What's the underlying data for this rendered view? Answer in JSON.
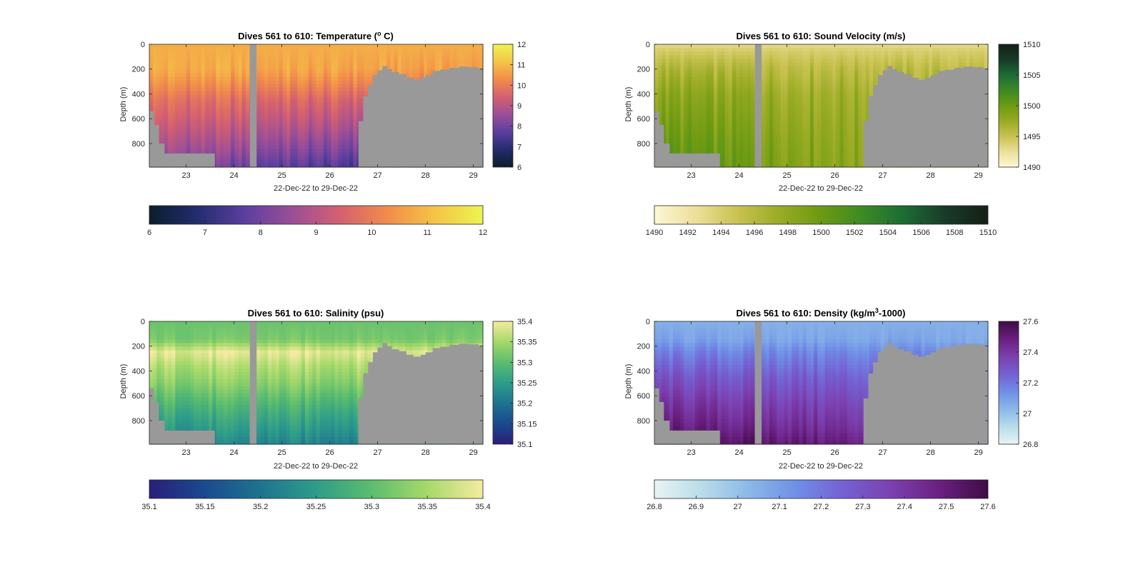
{
  "figure": {
    "background": "#ffffff",
    "nodata_color": "#999999"
  },
  "chart_data": [
    {
      "type": "heatmap",
      "title": "Dives 561 to 610: Temperature (",
      "title_sup": "o",
      "title_after": " C)",
      "xlabel": "22-Dec-22 to 29-Dec-22",
      "ylabel": "Depth (m)",
      "x_ticks": [
        "23",
        "24",
        "25",
        "26",
        "27",
        "28",
        "29"
      ],
      "x_tick_values": [
        23,
        24,
        25,
        26,
        27,
        28,
        29
      ],
      "xlim": [
        22.23,
        29.2
      ],
      "y_ticks": [
        "0",
        "200",
        "400",
        "600",
        "800"
      ],
      "y_tick_values": [
        0,
        200,
        400,
        600,
        800
      ],
      "ylim": [
        0,
        990
      ],
      "gap_day": [
        24.33,
        24.47
      ],
      "colormap": [
        "#0a1e2c",
        "#232c6e",
        "#5a3fa0",
        "#9c4e97",
        "#d46070",
        "#f28c4a",
        "#f5c447",
        "#ecf550"
      ],
      "clim": [
        6,
        12
      ],
      "colorbar_ticks": [
        "6",
        "7",
        "8",
        "9",
        "10",
        "11",
        "12"
      ],
      "colorbar_tick_values": [
        6,
        7,
        8,
        9,
        10,
        11,
        12
      ],
      "profile": {
        "depths": [
          0,
          200,
          300,
          450,
          650,
          850,
          990
        ],
        "values": [
          10.8,
          10.7,
          10.3,
          9.6,
          9.0,
          8.3,
          7.7
        ]
      },
      "trend": "linear"
    },
    {
      "type": "heatmap",
      "title": "Dives 561 to 610: Sound Velocity (m/s)",
      "xlabel": "22-Dec-22 to 29-Dec-22",
      "ylabel": "Depth (m)",
      "x_ticks": [
        "23",
        "24",
        "25",
        "26",
        "27",
        "28",
        "29"
      ],
      "x_tick_values": [
        23,
        24,
        25,
        26,
        27,
        28,
        29
      ],
      "xlim": [
        22.23,
        29.2
      ],
      "y_ticks": [
        "0",
        "200",
        "400",
        "600",
        "800"
      ],
      "y_tick_values": [
        0,
        200,
        400,
        600,
        800
      ],
      "ylim": [
        0,
        990
      ],
      "gap_day": [
        24.33,
        24.47
      ],
      "colormap": [
        "#fdf7d4",
        "#ecdf9a",
        "#c8c250",
        "#9aab24",
        "#6c9a12",
        "#3c8a24",
        "#1c6b35",
        "#183a28",
        "#141f17"
      ],
      "clim": [
        1490,
        1510
      ],
      "colorbar_ticks": [
        "1490",
        "1495",
        "1500",
        "1505",
        "1510"
      ],
      "colorbar_tick_values": [
        1490,
        1495,
        1500,
        1505,
        1510
      ],
      "colorbar_h_ticks": [
        "1490",
        "1492",
        "1494",
        "1496",
        "1498",
        "1500",
        "1502",
        "1504",
        "1506",
        "1508",
        "1510"
      ],
      "colorbar_h_tick_values": [
        1490,
        1492,
        1494,
        1496,
        1498,
        1500,
        1502,
        1504,
        1506,
        1508,
        1510
      ],
      "profile": {
        "depths": [
          0,
          60,
          200,
          400,
          600,
          800,
          990
        ],
        "values": [
          1493.0,
          1494.2,
          1496.0,
          1497.5,
          1498.2,
          1498.8,
          1499.2
        ]
      },
      "trend": "linear"
    },
    {
      "type": "heatmap",
      "title": "Dives 561 to 610: Salinity (psu)",
      "xlabel": "22-Dec-22 to 29-Dec-22",
      "ylabel": "Depth (m)",
      "x_ticks": [
        "23",
        "24",
        "25",
        "26",
        "27",
        "28",
        "29"
      ],
      "x_tick_values": [
        23,
        24,
        25,
        26,
        27,
        28,
        29
      ],
      "xlim": [
        22.23,
        29.2
      ],
      "y_ticks": [
        "0",
        "200",
        "400",
        "600",
        "800"
      ],
      "y_tick_values": [
        0,
        200,
        400,
        600,
        800
      ],
      "ylim": [
        0,
        990
      ],
      "gap_day": [
        24.33,
        24.47
      ],
      "colormap": [
        "#2a1e7a",
        "#1a4a8e",
        "#1e7390",
        "#2e9c8a",
        "#5cbd6e",
        "#a6d96a",
        "#f4eba0"
      ],
      "clim": [
        35.1,
        35.4
      ],
      "colorbar_ticks": [
        "35.1",
        "35.15",
        "35.2",
        "35.25",
        "35.3",
        "35.35",
        "35.4"
      ],
      "colorbar_tick_values": [
        35.1,
        35.15,
        35.2,
        35.25,
        35.3,
        35.35,
        35.4
      ],
      "profile": {
        "depths": [
          0,
          150,
          250,
          350,
          500,
          700,
          900,
          990
        ],
        "values": [
          35.31,
          35.32,
          35.39,
          35.36,
          35.33,
          35.28,
          35.24,
          35.22
        ]
      },
      "trend": "none"
    },
    {
      "type": "heatmap",
      "title": "Dives 561 to 610: Density (kg/m",
      "title_sup": "3",
      "title_after": "-1000)",
      "xlabel": "22-Dec-22 to 29-Dec-22",
      "ylabel": "Depth (m)",
      "x_ticks": [
        "23",
        "24",
        "25",
        "26",
        "27",
        "28",
        "29"
      ],
      "x_tick_values": [
        23,
        24,
        25,
        26,
        27,
        28,
        29
      ],
      "xlim": [
        22.23,
        29.2
      ],
      "y_ticks": [
        "0",
        "200",
        "400",
        "600",
        "800"
      ],
      "y_tick_values": [
        0,
        200,
        400,
        600,
        800
      ],
      "ylim": [
        0,
        990
      ],
      "gap_day": [
        24.33,
        24.47
      ],
      "colormap": [
        "#e8f4f4",
        "#b9dcea",
        "#8ab8e8",
        "#6f8ee6",
        "#7460d2",
        "#7c3fae",
        "#6a1f80",
        "#3e0c44"
      ],
      "clim": [
        26.8,
        27.6
      ],
      "colorbar_ticks": [
        "26.8",
        "27",
        "27.2",
        "27.4",
        "27.6"
      ],
      "colorbar_tick_values": [
        26.8,
        27.0,
        27.2,
        27.4,
        27.6
      ],
      "colorbar_h_ticks": [
        "26.8",
        "26.9",
        "27",
        "27.1",
        "27.2",
        "27.3",
        "27.4",
        "27.5",
        "27.6"
      ],
      "colorbar_h_tick_values": [
        26.8,
        26.9,
        27.0,
        27.1,
        27.2,
        27.3,
        27.4,
        27.5,
        27.6
      ],
      "profile": {
        "depths": [
          0,
          150,
          250,
          450,
          650,
          850,
          990
        ],
        "values": [
          27.05,
          27.08,
          27.16,
          27.27,
          27.36,
          27.44,
          27.52
        ]
      },
      "trend": "linear"
    }
  ],
  "seafloor": {
    "days": [
      22.23,
      22.33,
      22.43,
      22.55,
      23.6,
      24.2,
      24.5,
      25.5,
      26.4,
      26.6,
      26.7,
      26.8,
      26.9,
      27.0,
      27.1,
      27.2,
      27.3,
      27.45,
      27.6,
      27.75,
      27.9,
      28.0,
      28.15,
      28.3,
      28.5,
      28.7,
      28.9,
      29.1,
      29.2
    ],
    "depth_m": [
      540,
      650,
      800,
      880,
      990,
      990,
      990,
      990,
      990,
      620,
      420,
      330,
      250,
      210,
      175,
      200,
      225,
      240,
      270,
      285,
      270,
      250,
      215,
      205,
      190,
      180,
      185,
      195,
      205
    ]
  }
}
